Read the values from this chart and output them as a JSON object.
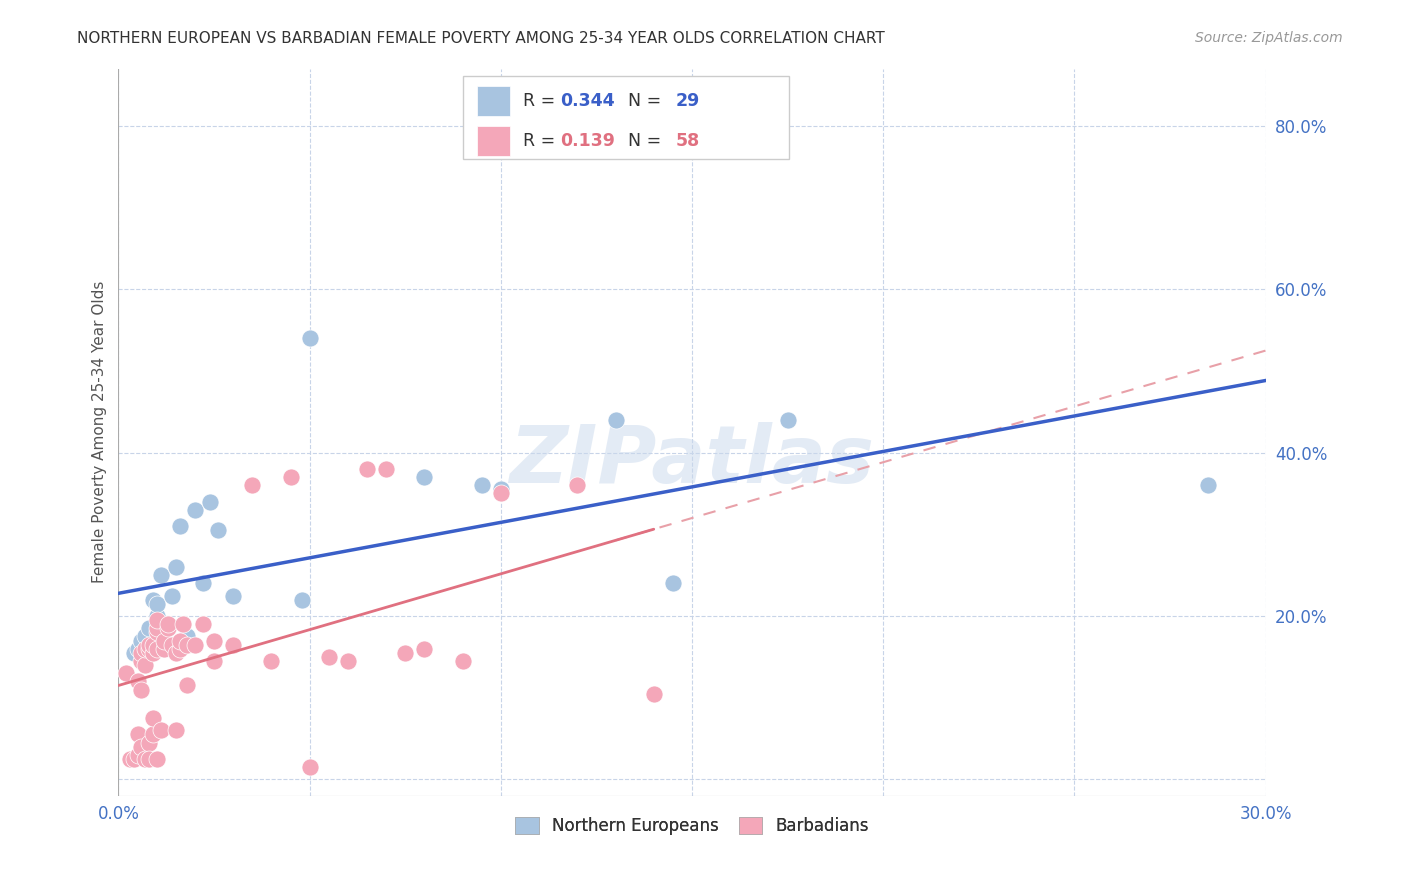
{
  "title": "NORTHERN EUROPEAN VS BARBADIAN FEMALE POVERTY AMONG 25-34 YEAR OLDS CORRELATION CHART",
  "source": "Source: ZipAtlas.com",
  "ylabel": "Female Poverty Among 25-34 Year Olds",
  "xlim": [
    0.0,
    0.3
  ],
  "ylim": [
    -0.02,
    0.87
  ],
  "xticks": [
    0.0,
    0.05,
    0.1,
    0.15,
    0.2,
    0.25,
    0.3
  ],
  "xtick_labels": [
    "0.0%",
    "",
    "",
    "",
    "",
    "",
    "30.0%"
  ],
  "ytick_right_labels": [
    "",
    "20.0%",
    "40.0%",
    "60.0%",
    "80.0%"
  ],
  "ytick_right_vals": [
    0.0,
    0.2,
    0.4,
    0.6,
    0.8
  ],
  "ne_R": "0.344",
  "ne_N": "29",
  "bb_R": "0.139",
  "bb_N": "58",
  "ne_color": "#a8c4e0",
  "bb_color": "#f4a7b9",
  "ne_line_color": "#3a5fc8",
  "bb_line_color": "#e07080",
  "bb_dash_color": "#e8a0a8",
  "grid_color": "#c8d4e8",
  "axis_color": "#4472c4",
  "watermark": "ZIPatlas",
  "ne_x": [
    0.004,
    0.005,
    0.006,
    0.007,
    0.008,
    0.009,
    0.01,
    0.01,
    0.011,
    0.012,
    0.013,
    0.014,
    0.015,
    0.016,
    0.018,
    0.02,
    0.022,
    0.024,
    0.026,
    0.03,
    0.048,
    0.05,
    0.08,
    0.095,
    0.1,
    0.13,
    0.145,
    0.175,
    0.285
  ],
  "ne_y": [
    0.155,
    0.16,
    0.17,
    0.175,
    0.185,
    0.22,
    0.2,
    0.215,
    0.25,
    0.18,
    0.165,
    0.225,
    0.26,
    0.31,
    0.175,
    0.33,
    0.24,
    0.34,
    0.305,
    0.225,
    0.22,
    0.54,
    0.37,
    0.36,
    0.355,
    0.44,
    0.24,
    0.44,
    0.36
  ],
  "bb_x": [
    0.002,
    0.003,
    0.004,
    0.005,
    0.005,
    0.005,
    0.006,
    0.006,
    0.006,
    0.006,
    0.007,
    0.007,
    0.007,
    0.008,
    0.008,
    0.008,
    0.008,
    0.009,
    0.009,
    0.009,
    0.009,
    0.01,
    0.01,
    0.01,
    0.01,
    0.01,
    0.011,
    0.012,
    0.012,
    0.013,
    0.013,
    0.014,
    0.015,
    0.015,
    0.016,
    0.016,
    0.017,
    0.018,
    0.018,
    0.02,
    0.022,
    0.025,
    0.025,
    0.03,
    0.035,
    0.04,
    0.045,
    0.05,
    0.055,
    0.06,
    0.065,
    0.07,
    0.075,
    0.08,
    0.09,
    0.1,
    0.12,
    0.14
  ],
  "bb_y": [
    0.13,
    0.025,
    0.025,
    0.12,
    0.03,
    0.055,
    0.11,
    0.145,
    0.04,
    0.155,
    0.025,
    0.14,
    0.16,
    0.045,
    0.16,
    0.165,
    0.025,
    0.055,
    0.075,
    0.155,
    0.165,
    0.025,
    0.16,
    0.18,
    0.185,
    0.195,
    0.06,
    0.16,
    0.17,
    0.185,
    0.19,
    0.165,
    0.06,
    0.155,
    0.16,
    0.17,
    0.19,
    0.115,
    0.165,
    0.165,
    0.19,
    0.145,
    0.17,
    0.165,
    0.36,
    0.145,
    0.37,
    0.015,
    0.15,
    0.145,
    0.38,
    0.38,
    0.155,
    0.16,
    0.145,
    0.35,
    0.36,
    0.105
  ]
}
